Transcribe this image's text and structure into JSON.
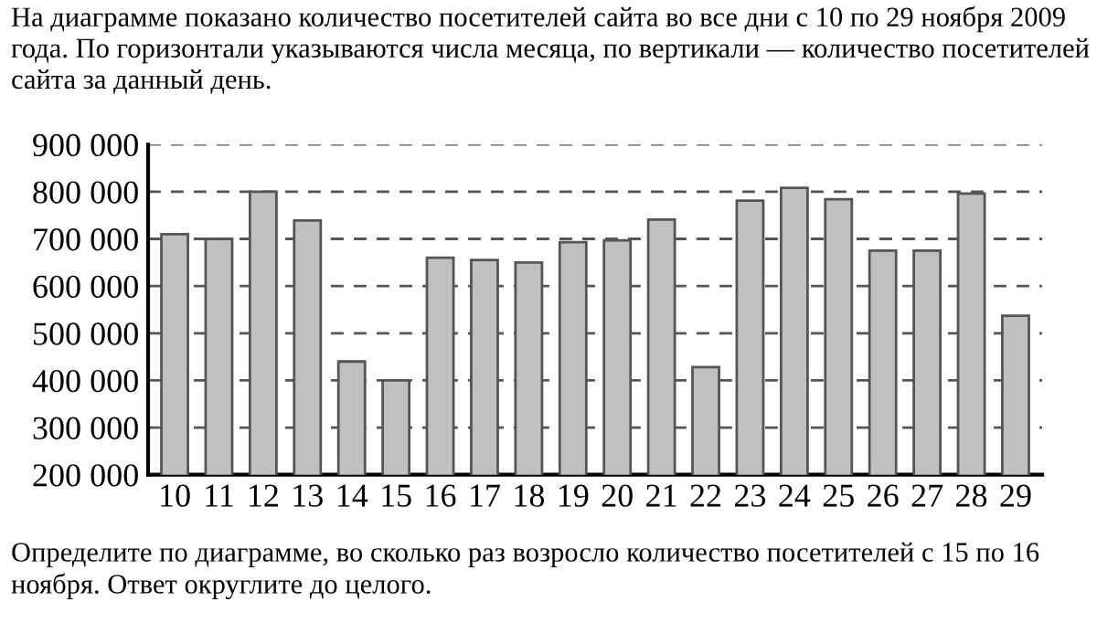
{
  "chart_data": {
    "type": "bar",
    "title": "На диаграмме показано количество посетителей сайта во все дни с 10 по 29 ноября 2009 года. По горизонтали указываются числа месяца, по вертикали — количество посетителей сайта за данный день.",
    "categories": [
      "10",
      "11",
      "12",
      "13",
      "14",
      "15",
      "16",
      "17",
      "18",
      "19",
      "20",
      "21",
      "22",
      "23",
      "24",
      "25",
      "26",
      "27",
      "28",
      "29"
    ],
    "values": [
      710000,
      700000,
      800000,
      739000,
      440000,
      400000,
      660000,
      655000,
      650000,
      693000,
      697000,
      741000,
      428000,
      781000,
      808000,
      784000,
      675000,
      675000,
      796000,
      537000
    ],
    "color": "#c0c0c0",
    "ylim": [
      200000,
      900000
    ],
    "yticks": [
      {
        "value": 200000,
        "label": "200 000"
      },
      {
        "value": 300000,
        "label": "300 000"
      },
      {
        "value": 400000,
        "label": "400 000"
      },
      {
        "value": 500000,
        "label": "500 000"
      },
      {
        "value": 600000,
        "label": "600 000"
      },
      {
        "value": 700000,
        "label": "700 000"
      },
      {
        "value": 800000,
        "label": "800 000"
      },
      {
        "value": 900000,
        "label": "900 000"
      }
    ],
    "grid": "y",
    "line_style": "dashed",
    "legend": false,
    "annotations": [
      "Определите по диаграмме, во сколько раз возросло количество посетителей с 15 по 16 ноября. Ответ округлите до целого."
    ]
  }
}
